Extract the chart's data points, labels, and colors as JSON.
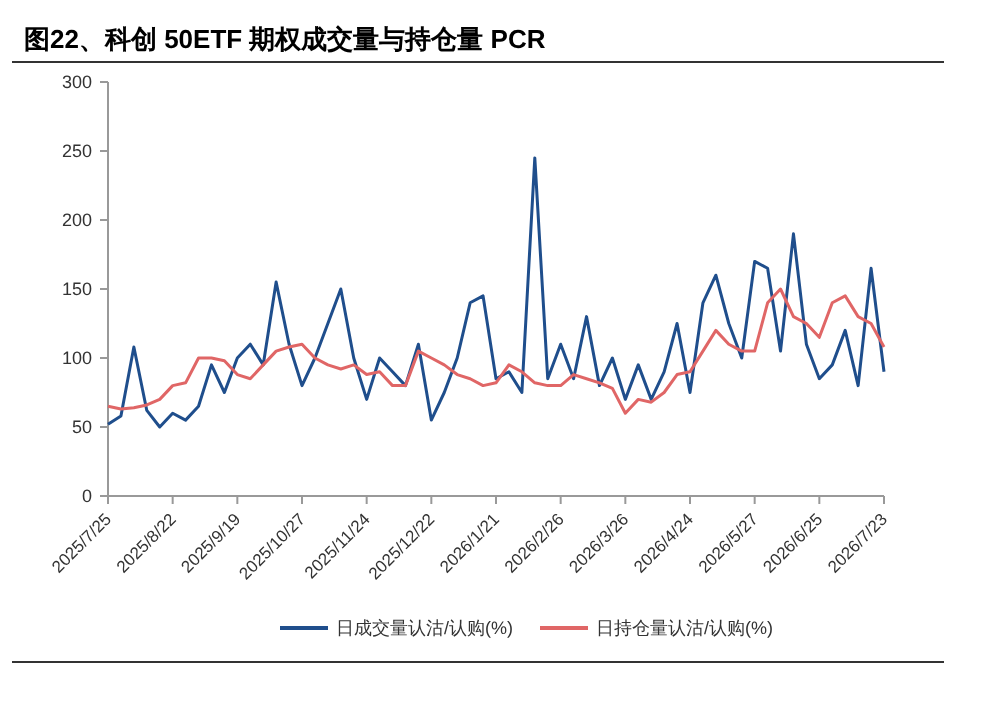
{
  "chart_data": {
    "type": "line",
    "title": "图22、科创 50ETF 期权成交量与持仓量 PCR",
    "categories": [
      "2025/7/25",
      null,
      null,
      null,
      null,
      "2025/8/22",
      null,
      null,
      null,
      null,
      "2025/9/19",
      null,
      null,
      null,
      null,
      "2025/10/27",
      null,
      null,
      null,
      null,
      "2025/11/24",
      null,
      null,
      null,
      null,
      "2025/12/22",
      null,
      null,
      null,
      null,
      "2026/1/21",
      null,
      null,
      null,
      null,
      "2026/2/26",
      null,
      null,
      null,
      null,
      "2026/3/26",
      null,
      null,
      null,
      null,
      "2026/4/24",
      null,
      null,
      null,
      null,
      "2026/5/27",
      null,
      null,
      null,
      null,
      "2026/6/25",
      null,
      null,
      null,
      null,
      "2026/7/23"
    ],
    "ylim": [
      0,
      300
    ],
    "yticks": [
      0,
      50,
      100,
      150,
      200,
      250,
      300
    ],
    "grid": false,
    "legend": "bottom",
    "line_style": "solid",
    "series": [
      {
        "name": "日成交量认沽/认购(%)",
        "color": "#1f4e8c",
        "values": [
          52,
          58,
          108,
          62,
          50,
          60,
          55,
          65,
          95,
          75,
          100,
          110,
          95,
          155,
          110,
          80,
          100,
          125,
          150,
          100,
          70,
          100,
          90,
          80,
          110,
          55,
          75,
          100,
          140,
          145,
          85,
          90,
          75,
          245,
          85,
          110,
          85,
          130,
          80,
          100,
          70,
          95,
          70,
          90,
          125,
          75,
          140,
          160,
          125,
          100,
          170,
          165,
          105,
          190,
          110,
          85,
          95,
          120,
          80,
          165,
          90
        ]
      },
      {
        "name": "日持仓量认沽/认购(%)",
        "color": "#e06666",
        "values": [
          65,
          63,
          64,
          66,
          70,
          80,
          82,
          100,
          100,
          98,
          88,
          85,
          95,
          105,
          108,
          110,
          100,
          95,
          92,
          95,
          88,
          90,
          80,
          80,
          105,
          100,
          95,
          88,
          85,
          80,
          82,
          95,
          90,
          82,
          80,
          80,
          88,
          85,
          82,
          78,
          60,
          70,
          68,
          75,
          88,
          90,
          105,
          120,
          110,
          105,
          105,
          140,
          150,
          130,
          125,
          115,
          140,
          145,
          130,
          125,
          108
        ]
      }
    ]
  }
}
